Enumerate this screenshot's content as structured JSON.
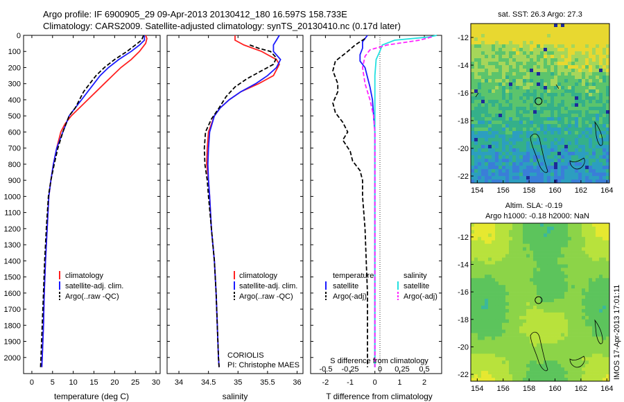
{
  "header": {
    "line1": "Argo profile: IF 6900905_29 09-Apr-2013 20130412_180 16.597S 158.733E",
    "line2": "Climatology: CARS2009. Satellite-adjusted climatology: synTS_20130410.nc (0.17d later)"
  },
  "colors": {
    "climatology": "#ff2020",
    "satellite": "#1a1aff",
    "argo": "#000000",
    "cyan": "#22e0e0",
    "magenta": "#ff22ff"
  },
  "chart_data": [
    {
      "type": "line",
      "xlabel": "temperature (deg C)",
      "ylabel": "",
      "xlim": [
        -2,
        31
      ],
      "ylim": [
        2100,
        0
      ],
      "xticks": [
        0,
        5,
        10,
        15,
        20,
        25,
        30
      ],
      "yticks": [
        0,
        100,
        200,
        300,
        400,
        500,
        600,
        700,
        800,
        900,
        1000,
        1100,
        1200,
        1300,
        1400,
        1500,
        1600,
        1700,
        1800,
        1900,
        2000
      ],
      "legend": {
        "position": "lower-right",
        "entries": [
          "climatology",
          "satellite-adj. clim.",
          "Argo(..raw -QC)"
        ]
      },
      "series": [
        {
          "name": "climatology",
          "style": "solid",
          "color": "#ff2020",
          "points": [
            [
              27.5,
              0
            ],
            [
              27.8,
              20
            ],
            [
              27.5,
              50
            ],
            [
              26,
              100
            ],
            [
              24,
              150
            ],
            [
              21.5,
              200
            ],
            [
              19.5,
              250
            ],
            [
              17.5,
              300
            ],
            [
              15.5,
              350
            ],
            [
              13.5,
              400
            ],
            [
              11.5,
              450
            ],
            [
              9.5,
              500
            ],
            [
              8,
              550
            ],
            [
              7,
              600
            ],
            [
              6,
              700
            ],
            [
              5.2,
              800
            ],
            [
              4.6,
              900
            ],
            [
              4.1,
              1000
            ],
            [
              3.7,
              1200
            ],
            [
              3.3,
              1400
            ],
            [
              3,
              1600
            ],
            [
              2.8,
              1800
            ],
            [
              2.5,
              2000
            ],
            [
              2.4,
              2060
            ]
          ]
        },
        {
          "name": "satellite-adj. clim.",
          "style": "solid",
          "color": "#1a1aff",
          "points": [
            [
              27.2,
              0
            ],
            [
              27.2,
              30
            ],
            [
              26,
              60
            ],
            [
              24,
              100
            ],
            [
              21,
              150
            ],
            [
              18.5,
              200
            ],
            [
              16.5,
              250
            ],
            [
              15,
              300
            ],
            [
              13.5,
              350
            ],
            [
              12,
              400
            ],
            [
              10.5,
              450
            ],
            [
              9,
              500
            ],
            [
              7.5,
              600
            ],
            [
              6,
              700
            ],
            [
              5.2,
              800
            ],
            [
              4.6,
              900
            ],
            [
              4.1,
              1000
            ],
            [
              3.7,
              1200
            ],
            [
              3.3,
              1400
            ],
            [
              3,
              1600
            ],
            [
              2.8,
              1800
            ],
            [
              2.5,
              2000
            ],
            [
              2.4,
              2060
            ]
          ]
        },
        {
          "name": "Argo(..raw -QC)",
          "style": "dashed",
          "color": "#000000",
          "points": [
            [
              27,
              0
            ],
            [
              26.5,
              30
            ],
            [
              25,
              60
            ],
            [
              23,
              100
            ],
            [
              20,
              150
            ],
            [
              17.5,
              200
            ],
            [
              15.5,
              250
            ],
            [
              14,
              300
            ],
            [
              12.5,
              350
            ],
            [
              11.5,
              400
            ],
            [
              10.5,
              450
            ],
            [
              9,
              500
            ],
            [
              7.5,
              600
            ],
            [
              6.3,
              700
            ],
            [
              5.4,
              800
            ],
            [
              4.6,
              900
            ],
            [
              4,
              1000
            ],
            [
              3.5,
              1200
            ],
            [
              3.1,
              1400
            ],
            [
              2.8,
              1600
            ],
            [
              2.5,
              1800
            ],
            [
              2.2,
              2000
            ],
            [
              2.1,
              2060
            ]
          ]
        }
      ]
    },
    {
      "type": "line",
      "xlabel": "salinity",
      "xlim": [
        33.8,
        36.1
      ],
      "ylim": [
        2100,
        0
      ],
      "xticks": [
        34,
        34.5,
        35,
        35.5,
        36
      ],
      "legend": {
        "position": "lower-right",
        "entries": [
          "climatology",
          "satellite-adj. clim.",
          "Argo(..raw -QC)"
        ]
      },
      "annotations": [
        "CORIOLIS",
        "PI: Christophe MAES"
      ],
      "series": [
        {
          "name": "climatology",
          "style": "solid",
          "color": "#ff2020",
          "points": [
            [
              34.95,
              0
            ],
            [
              34.95,
              30
            ],
            [
              35.1,
              60
            ],
            [
              35.4,
              100
            ],
            [
              35.65,
              150
            ],
            [
              35.7,
              180
            ],
            [
              35.6,
              250
            ],
            [
              35.35,
              300
            ],
            [
              35.05,
              350
            ],
            [
              34.85,
              400
            ],
            [
              34.7,
              450
            ],
            [
              34.6,
              500
            ],
            [
              34.5,
              600
            ],
            [
              34.48,
              700
            ],
            [
              34.47,
              800
            ],
            [
              34.5,
              900
            ],
            [
              34.52,
              1000
            ],
            [
              34.55,
              1200
            ],
            [
              34.6,
              1400
            ],
            [
              34.63,
              1600
            ],
            [
              34.65,
              1800
            ],
            [
              34.67,
              2000
            ],
            [
              34.68,
              2060
            ]
          ]
        },
        {
          "name": "satellite-adj. clim.",
          "style": "solid",
          "color": "#1a1aff",
          "points": [
            [
              35.7,
              0
            ],
            [
              35.65,
              30
            ],
            [
              35.6,
              60
            ],
            [
              35.6,
              100
            ],
            [
              35.72,
              150
            ],
            [
              35.65,
              200
            ],
            [
              35.5,
              250
            ],
            [
              35.3,
              300
            ],
            [
              35.05,
              350
            ],
            [
              34.85,
              400
            ],
            [
              34.7,
              450
            ],
            [
              34.6,
              500
            ],
            [
              34.52,
              600
            ],
            [
              34.5,
              700
            ],
            [
              34.49,
              800
            ],
            [
              34.5,
              900
            ],
            [
              34.52,
              1000
            ],
            [
              34.55,
              1200
            ],
            [
              34.6,
              1400
            ],
            [
              34.63,
              1600
            ],
            [
              34.65,
              1800
            ],
            [
              34.67,
              2000
            ],
            [
              34.68,
              2060
            ]
          ]
        },
        {
          "name": "Argo(..raw -QC)",
          "style": "dashed",
          "color": "#000000",
          "points": [
            [
              35.2,
              60
            ],
            [
              35.35,
              80
            ],
            [
              35.55,
              100
            ],
            [
              35.65,
              140
            ],
            [
              35.6,
              180
            ],
            [
              35.4,
              220
            ],
            [
              35.15,
              270
            ],
            [
              34.95,
              320
            ],
            [
              34.8,
              380
            ],
            [
              34.68,
              450
            ],
            [
              34.55,
              520
            ],
            [
              34.45,
              600
            ],
            [
              34.43,
              700
            ],
            [
              34.44,
              800
            ],
            [
              34.48,
              900
            ],
            [
              34.5,
              1000
            ],
            [
              34.55,
              1200
            ],
            [
              34.6,
              1400
            ],
            [
              34.63,
              1600
            ],
            [
              34.65,
              1800
            ],
            [
              34.67,
              2000
            ],
            [
              34.68,
              2060
            ]
          ]
        }
      ]
    },
    {
      "type": "line",
      "xlabel": "T difference from climatology",
      "xlabel_top": "S difference from climatology",
      "xlim": [
        -2.6,
        2.7
      ],
      "ylim": [
        2100,
        0
      ],
      "xticks": [
        -2,
        -1,
        0,
        1,
        2
      ],
      "xticks_secondary": [
        "-0.5",
        "-0.25",
        "0",
        "0.25",
        "0.5"
      ],
      "legend": {
        "position": "lower",
        "titles": [
          "temperature",
          "salinity"
        ],
        "entries": [
          "satellite",
          "Argo(-adj)",
          "satellite",
          "Argo(-adj)"
        ]
      },
      "series": [
        {
          "name": "temperature satellite",
          "style": "solid",
          "color": "#1a1aff",
          "points": [
            [
              -0.3,
              0
            ],
            [
              -0.5,
              40
            ],
            [
              -0.5,
              80
            ],
            [
              -0.6,
              120
            ],
            [
              -0.6,
              160
            ],
            [
              -0.4,
              200
            ],
            [
              -0.3,
              260
            ],
            [
              -0.2,
              320
            ],
            [
              -0.1,
              400
            ],
            [
              -0.05,
              500
            ],
            [
              0,
              600
            ],
            [
              0,
              800
            ],
            [
              0,
              1200
            ],
            [
              0,
              1600
            ],
            [
              0,
              2000
            ],
            [
              0,
              2060
            ]
          ]
        },
        {
          "name": "temperature Argo(-adj)",
          "style": "dashed",
          "color": "#000000",
          "points": [
            [
              -0.4,
              20
            ],
            [
              -0.8,
              60
            ],
            [
              -1.1,
              100
            ],
            [
              -1.6,
              160
            ],
            [
              -1.7,
              220
            ],
            [
              -1.5,
              300
            ],
            [
              -1.5,
              350
            ],
            [
              -1.7,
              420
            ],
            [
              -1.6,
              480
            ],
            [
              -1.3,
              540
            ],
            [
              -1.1,
              600
            ],
            [
              -1.3,
              650
            ],
            [
              -1,
              720
            ],
            [
              -0.9,
              780
            ],
            [
              -0.6,
              840
            ],
            [
              -0.5,
              900
            ],
            [
              -0.5,
              1000
            ],
            [
              -0.4,
              1200
            ],
            [
              -0.35,
              1400
            ],
            [
              -0.3,
              1600
            ],
            [
              -0.3,
              1800
            ],
            [
              -0.3,
              2000
            ],
            [
              -0.3,
              2060
            ]
          ]
        },
        {
          "name": "salinity satellite",
          "style": "solid",
          "color": "#22e0e0",
          "points": [
            [
              2.5,
              0
            ],
            [
              2.2,
              10
            ],
            [
              0.8,
              30
            ],
            [
              0.3,
              60
            ],
            [
              0.2,
              100
            ],
            [
              0.05,
              150
            ],
            [
              0,
              250
            ],
            [
              0,
              400
            ],
            [
              0,
              600
            ],
            [
              0,
              1000
            ],
            [
              0,
              1500
            ],
            [
              0,
              2000
            ],
            [
              0,
              2060
            ]
          ]
        },
        {
          "name": "salinity Argo(-adj)",
          "style": "dashed",
          "color": "#ff22ff",
          "points": [
            [
              2.3,
              10
            ],
            [
              1.8,
              30
            ],
            [
              0.5,
              60
            ],
            [
              -0.2,
              90
            ],
            [
              -0.4,
              130
            ],
            [
              -0.5,
              200
            ],
            [
              -0.4,
              300
            ],
            [
              -0.2,
              400
            ],
            [
              -0.05,
              500
            ],
            [
              0,
              600
            ],
            [
              0,
              800
            ],
            [
              0,
              1000
            ],
            [
              0,
              1500
            ],
            [
              0,
              2000
            ],
            [
              0,
              2060
            ]
          ]
        }
      ]
    },
    {
      "type": "heatmap",
      "title": "sat. SST: 26.3 Argo: 27.3",
      "xlim": [
        153.5,
        164.2
      ],
      "ylim": [
        -22.5,
        -11
      ],
      "xticks": [
        154,
        156,
        158,
        160,
        162,
        164
      ],
      "yticks": [
        -12,
        -14,
        -16,
        -18,
        -20,
        -22
      ],
      "marker": {
        "lon": 158.73,
        "lat": -16.6
      }
    },
    {
      "type": "heatmap",
      "title": "Altim. SLA: -0.19",
      "subtitle": "Argo h1000: -0.18 h2000: NaN",
      "xlim": [
        153.5,
        164.2
      ],
      "ylim": [
        -22.5,
        -11
      ],
      "xticks": [
        154,
        156,
        158,
        160,
        162,
        164
      ],
      "yticks": [
        -12,
        -14,
        -16,
        -18,
        -20,
        -22
      ],
      "marker": {
        "lon": 158.73,
        "lat": -16.6
      }
    }
  ],
  "stamp": "IMOS 17-Apr-2013 17:01:11"
}
